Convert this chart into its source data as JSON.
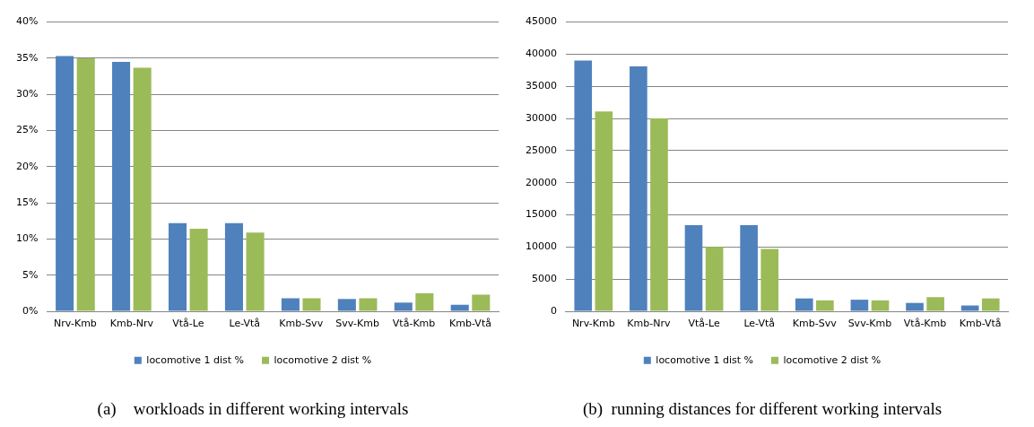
{
  "chart_data": [
    {
      "type": "bar",
      "title": "(a)    workloads in different working intervals",
      "categories": [
        "Nrv-Kmb",
        "Kmb-Nrv",
        "Vtå-Le",
        "Le-Vtå",
        "Kmb-Svv",
        "Svv-Kmb",
        "Vtå-Kmb",
        "Kmb-Vtå"
      ],
      "series": [
        {
          "name": "locomotive 1 dist %",
          "color": "#4f81bd",
          "values": [
            35.3,
            34.5,
            12.2,
            12.2,
            1.8,
            1.7,
            1.2,
            0.9
          ]
        },
        {
          "name": "locomotive 2 dist %",
          "color": "#9bbb59",
          "values": [
            35.0,
            33.7,
            11.4,
            10.9,
            1.8,
            1.8,
            2.5,
            2.3
          ]
        }
      ],
      "ylim": [
        0,
        40
      ],
      "yticks": [
        {
          "value": 0,
          "label": "0%"
        },
        {
          "value": 5,
          "label": "5%"
        },
        {
          "value": 10,
          "label": "10%"
        },
        {
          "value": 15,
          "label": "15%"
        },
        {
          "value": 20,
          "label": "20%"
        },
        {
          "value": 25,
          "label": "25%"
        },
        {
          "value": 30,
          "label": "30%"
        },
        {
          "value": 35,
          "label": "35%"
        },
        {
          "value": 40,
          "label": "40%"
        }
      ],
      "grid": "y",
      "legend": "bottom"
    },
    {
      "type": "bar",
      "title": "(b)  running distances for different working intervals",
      "categories": [
        "Nrv-Kmb",
        "Kmb-Nrv",
        "Vtå-Le",
        "Le-Vtå",
        "Kmb-Svv",
        "Svv-Kmb",
        "Vtå-Kmb",
        "Kmb-Vtå"
      ],
      "series": [
        {
          "name": "locomotive 1 dist %",
          "color": "#4f81bd",
          "values": [
            39000,
            38100,
            13400,
            13400,
            2000,
            1800,
            1300,
            900
          ]
        },
        {
          "name": "locomotive 2 dist %",
          "color": "#9bbb59",
          "values": [
            31100,
            30000,
            10000,
            9700,
            1700,
            1700,
            2200,
            2000
          ]
        }
      ],
      "ylim": [
        0,
        45000
      ],
      "yticks": [
        0,
        5000,
        10000,
        15000,
        20000,
        25000,
        30000,
        35000,
        40000,
        45000
      ],
      "grid": "y",
      "legend": "bottom"
    }
  ]
}
